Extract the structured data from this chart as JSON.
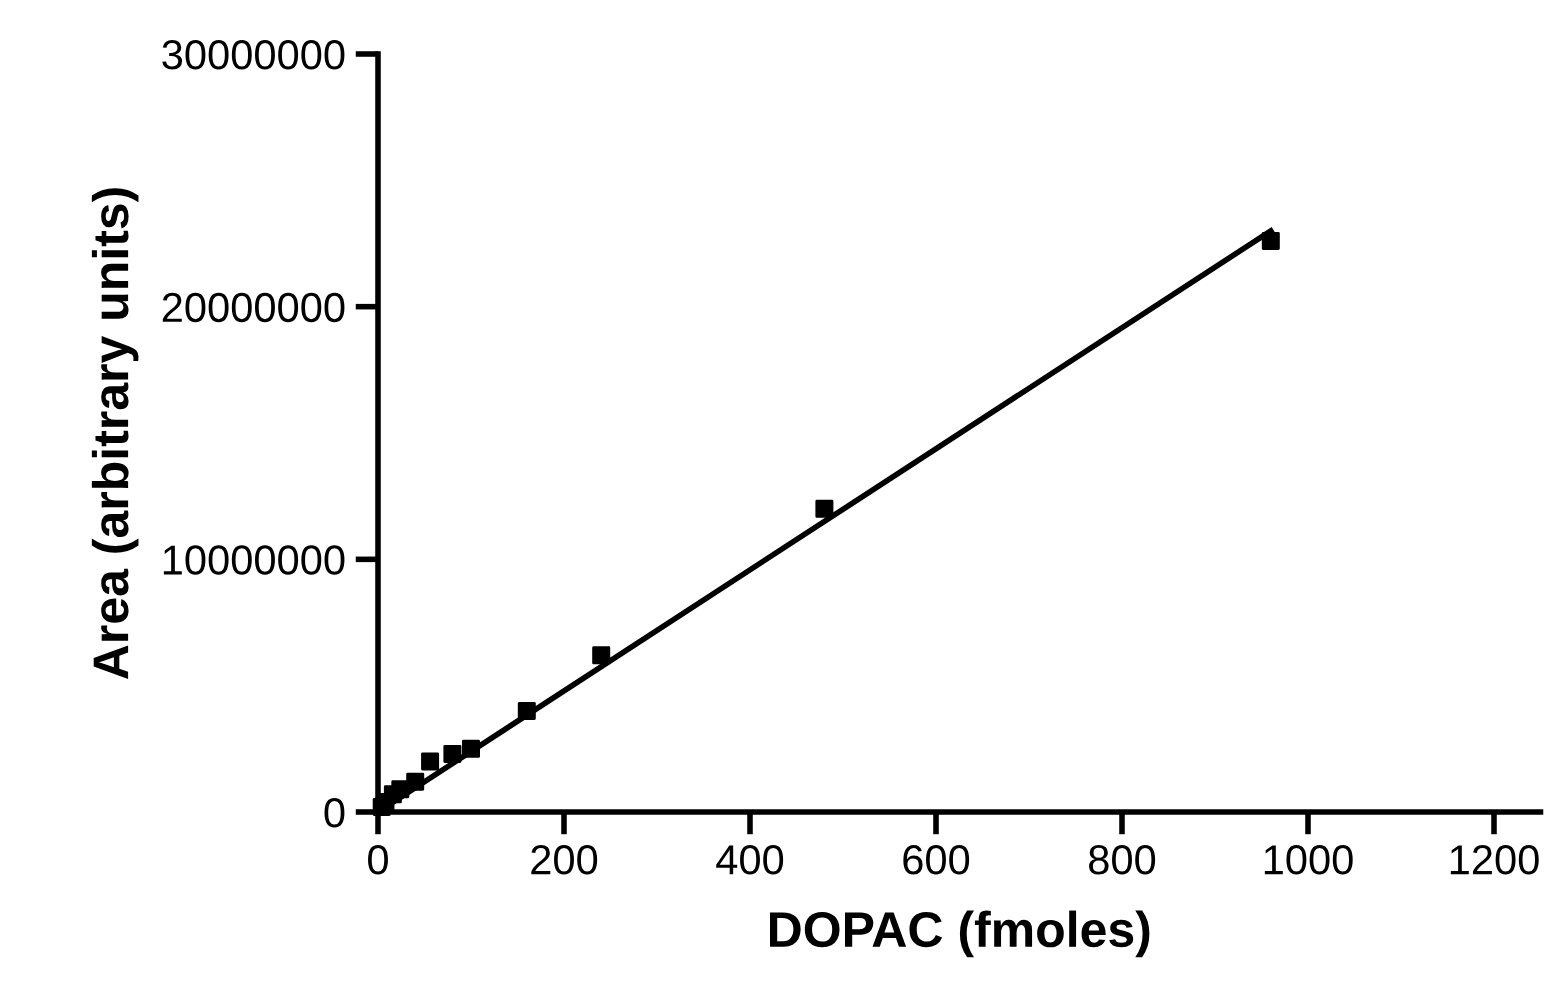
{
  "chart_data": {
    "type": "scatter",
    "xlabel": "DOPAC (fmoles)",
    "ylabel": "Area (arbitrary units)",
    "series": [
      {
        "color": "#000000",
        "marker": "square",
        "x": [
          4,
          8,
          16,
          24,
          40,
          56,
          80,
          100,
          160,
          240,
          480,
          960
        ],
        "values": [
          200000,
          400000,
          700000,
          900000,
          1200000,
          2000000,
          2300000,
          2500000,
          4000000,
          6200000,
          12000000,
          22600000
        ]
      },
      {
        "type": "line",
        "color": "#000000",
        "marker": "none",
        "line_style": "solid",
        "x": [
          0,
          960
        ],
        "values": [
          0,
          23000000
        ]
      }
    ],
    "xlim": [
      0,
      1250
    ],
    "ylim": [
      0,
      30000000
    ],
    "xticks": [
      0,
      200,
      400,
      600,
      800,
      1000,
      1200
    ],
    "yticks": [
      0,
      10000000,
      20000000,
      30000000
    ],
    "grid": false,
    "legend": false
  }
}
